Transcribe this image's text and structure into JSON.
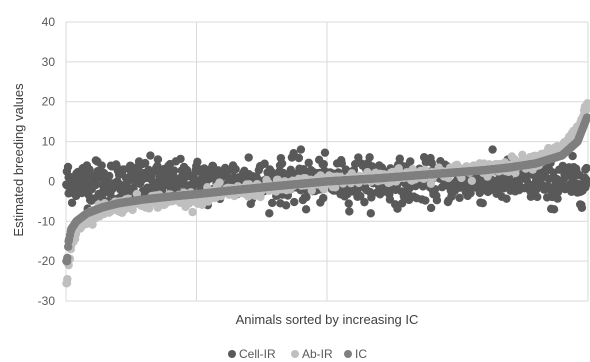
{
  "chart_data": {
    "type": "scatter",
    "title": "",
    "xlabel": "Animals sorted by increasing IC",
    "ylabel": "Estimated breeding values",
    "ylim": [
      -30,
      40
    ],
    "yticks": [
      -30,
      -20,
      -10,
      0,
      10,
      20,
      30,
      40
    ],
    "xlim": [
      0,
      1000
    ],
    "x_gridlines_at": [
      250,
      500,
      1000
    ],
    "grid": true,
    "legend_position": "bottom",
    "series": [
      {
        "name": "Cell-IR",
        "color": "#595959",
        "summary": "dense cloud around 0, roughly from -8 to +8 across all animals",
        "sample_points": [
          [
            5,
            -3
          ],
          [
            20,
            2
          ],
          [
            40,
            4
          ],
          [
            60,
            5
          ],
          [
            80,
            -5
          ],
          [
            110,
            3
          ],
          [
            140,
            5
          ],
          [
            180,
            2
          ],
          [
            230,
            -1
          ],
          [
            260,
            3
          ],
          [
            320,
            4
          ],
          [
            350,
            6
          ],
          [
            410,
            4
          ],
          [
            430,
            -2
          ],
          [
            450,
            3
          ],
          [
            500,
            1
          ],
          [
            560,
            6
          ],
          [
            600,
            4
          ],
          [
            640,
            3
          ],
          [
            680,
            2
          ],
          [
            700,
            2
          ],
          [
            740,
            -3
          ],
          [
            780,
            2
          ],
          [
            820,
            0
          ],
          [
            860,
            4
          ],
          [
            900,
            3
          ],
          [
            935,
            -7
          ],
          [
            970,
            0
          ],
          [
            995,
            3
          ],
          [
            450,
            8
          ],
          [
            460,
            -7
          ]
        ]
      },
      {
        "name": "Ab-IR",
        "color": "#bfbfbf",
        "summary": "sigmoid band: about -25 at far left, rising to ~-5 by 20% of animals, near 0 in the middle, ~3 near 80%, then rising sharply to about +20 at far right",
        "sample_points": [
          [
            2,
            -25.5
          ],
          [
            5,
            -21
          ],
          [
            10,
            -16
          ],
          [
            20,
            -12
          ],
          [
            40,
            -9
          ],
          [
            70,
            -7
          ],
          [
            100,
            -6
          ],
          [
            150,
            -5
          ],
          [
            200,
            -4.5
          ],
          [
            250,
            -4
          ],
          [
            300,
            -3
          ],
          [
            400,
            -1.5
          ],
          [
            500,
            0
          ],
          [
            600,
            1
          ],
          [
            700,
            2
          ],
          [
            800,
            3
          ],
          [
            850,
            4
          ],
          [
            900,
            5.5
          ],
          [
            950,
            8
          ],
          [
            980,
            13
          ],
          [
            998,
            19
          ]
        ]
      },
      {
        "name": "IC",
        "color": "#7f7f7f",
        "summary": "smooth increasing curve (sorting variable) from about -20 at left to about +17 at right, slightly above Ab-IR on the left and just below it on the right",
        "sample_points": [
          [
            2,
            -20
          ],
          [
            5,
            -15
          ],
          [
            10,
            -12
          ],
          [
            20,
            -10
          ],
          [
            40,
            -8
          ],
          [
            70,
            -6.5
          ],
          [
            100,
            -5.5
          ],
          [
            150,
            -4.5
          ],
          [
            200,
            -3.8
          ],
          [
            250,
            -3.2
          ],
          [
            300,
            -2.5
          ],
          [
            400,
            -1.2
          ],
          [
            500,
            0
          ],
          [
            600,
            0.8
          ],
          [
            700,
            1.8
          ],
          [
            800,
            2.8
          ],
          [
            850,
            3.5
          ],
          [
            900,
            4.5
          ],
          [
            950,
            6.5
          ],
          [
            980,
            10
          ],
          [
            998,
            16
          ]
        ]
      }
    ]
  }
}
